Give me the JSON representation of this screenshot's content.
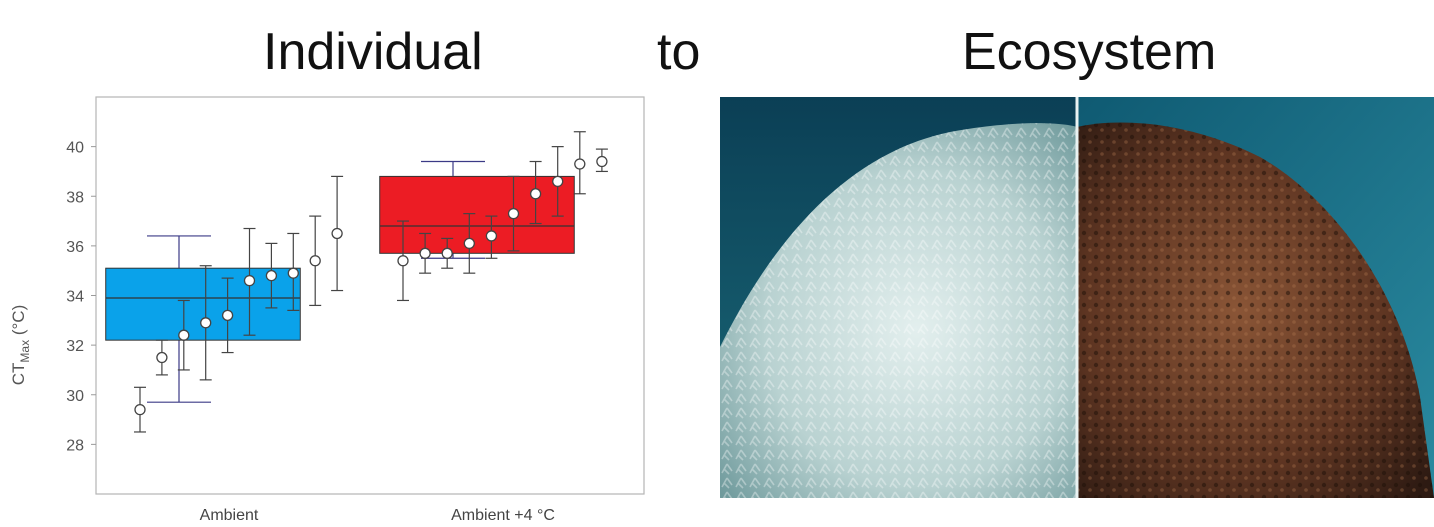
{
  "headings": {
    "left": "Individual",
    "middle": "to",
    "right": "Ecosystem"
  },
  "chart_data": {
    "type": "box",
    "title": "",
    "xlabel": "",
    "ylabel": "CT",
    "ylabel_sub": "Max",
    "ylabel_unit": " (°C)",
    "ylim": [
      26,
      42
    ],
    "yticks": [
      28,
      30,
      32,
      34,
      36,
      38,
      40
    ],
    "grid": false,
    "legend": "none",
    "categories": [
      "Ambient",
      "Ambient +4 °C"
    ],
    "boxes": [
      {
        "group": "Ambient",
        "q1": 32.2,
        "median": 33.9,
        "q3": 35.1,
        "whisker_low": 29.7,
        "whisker_high": 36.4,
        "color": "#0aa2ea"
      },
      {
        "group": "Ambient +4 °C",
        "q1": 35.7,
        "median": 36.8,
        "q3": 38.8,
        "whisker_low": 35.5,
        "whisker_high": 39.4,
        "color": "#ec1c24"
      }
    ],
    "points": [
      {
        "group": "Ambient",
        "y": 29.4,
        "low": 28.5,
        "high": 30.3
      },
      {
        "group": "Ambient",
        "y": 31.5,
        "low": 30.8,
        "high": 32.2
      },
      {
        "group": "Ambient",
        "y": 32.4,
        "low": 31.0,
        "high": 33.8
      },
      {
        "group": "Ambient",
        "y": 32.9,
        "low": 30.6,
        "high": 35.2
      },
      {
        "group": "Ambient",
        "y": 33.2,
        "low": 31.7,
        "high": 34.7
      },
      {
        "group": "Ambient",
        "y": 34.6,
        "low": 32.4,
        "high": 36.7
      },
      {
        "group": "Ambient",
        "y": 34.8,
        "low": 33.5,
        "high": 36.1
      },
      {
        "group": "Ambient",
        "y": 34.9,
        "low": 33.4,
        "high": 36.5
      },
      {
        "group": "Ambient",
        "y": 35.4,
        "low": 33.6,
        "high": 37.2
      },
      {
        "group": "Ambient",
        "y": 36.5,
        "low": 34.2,
        "high": 38.8
      },
      {
        "group": "Ambient +4 °C",
        "y": 35.4,
        "low": 33.8,
        "high": 37.0
      },
      {
        "group": "Ambient +4 °C",
        "y": 35.7,
        "low": 34.9,
        "high": 36.5
      },
      {
        "group": "Ambient +4 °C",
        "y": 35.7,
        "low": 35.1,
        "high": 36.3
      },
      {
        "group": "Ambient +4 °C",
        "y": 36.1,
        "low": 34.9,
        "high": 37.3
      },
      {
        "group": "Ambient +4 °C",
        "y": 36.4,
        "low": 35.5,
        "high": 37.2
      },
      {
        "group": "Ambient +4 °C",
        "y": 37.3,
        "low": 35.8,
        "high": 38.8
      },
      {
        "group": "Ambient +4 °C",
        "y": 38.1,
        "low": 36.9,
        "high": 39.4
      },
      {
        "group": "Ambient +4 °C",
        "y": 38.6,
        "low": 37.2,
        "high": 40.0
      },
      {
        "group": "Ambient +4 °C",
        "y": 39.3,
        "low": 38.1,
        "high": 40.6
      },
      {
        "group": "Ambient +4 °C",
        "y": 39.4,
        "low": 39.0,
        "high": 39.9
      }
    ]
  },
  "photo": {
    "left_condition": "bleached-coral",
    "right_condition": "healthy-coral",
    "water_color": "#0e4a5e",
    "bleached_color": "#cfe1e0",
    "healthy_color": "#5a3220"
  }
}
